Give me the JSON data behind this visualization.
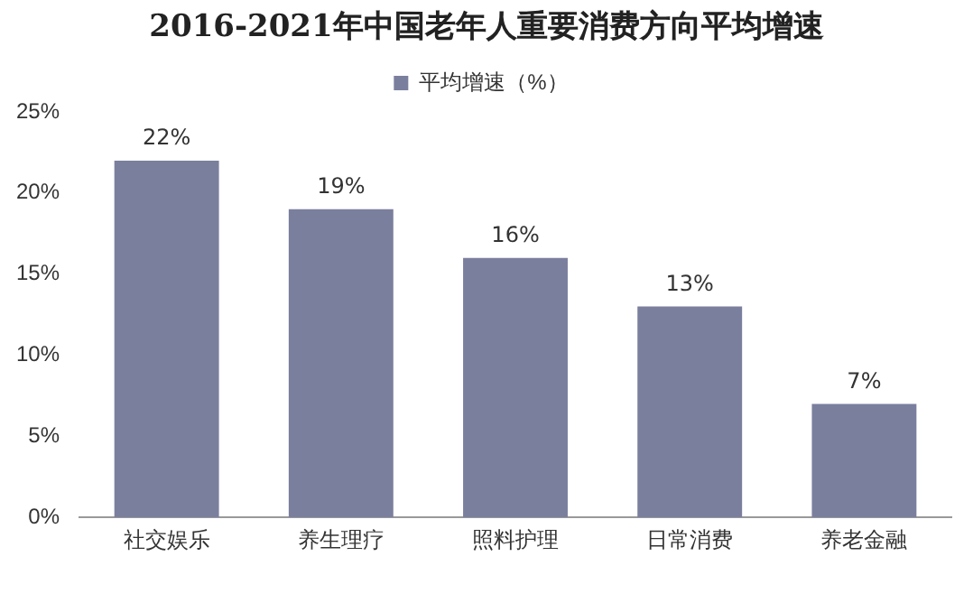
{
  "chart_data": {
    "type": "bar",
    "title": "2016-2021年中国老年人重要消费方向平均增速",
    "categories": [
      "社交娱乐",
      "养生理疗",
      "照料护理",
      "日常消费",
      "养老金融"
    ],
    "series": [
      {
        "name": "平均增速（%）",
        "color": "#7b7f9e",
        "values": [
          22,
          19,
          16,
          13,
          7
        ],
        "value_labels": [
          "22%",
          "19%",
          "16%",
          "13%",
          "7%"
        ]
      }
    ],
    "ylim": [
      0,
      25
    ],
    "yticks": [
      {
        "value": 0,
        "label": "0%"
      },
      {
        "value": 5,
        "label": "5%"
      },
      {
        "value": 10,
        "label": "10%"
      },
      {
        "value": 15,
        "label": "15%"
      },
      {
        "value": 20,
        "label": "20%"
      },
      {
        "value": 25,
        "label": "25%"
      }
    ],
    "grid": false,
    "legend": "top"
  }
}
